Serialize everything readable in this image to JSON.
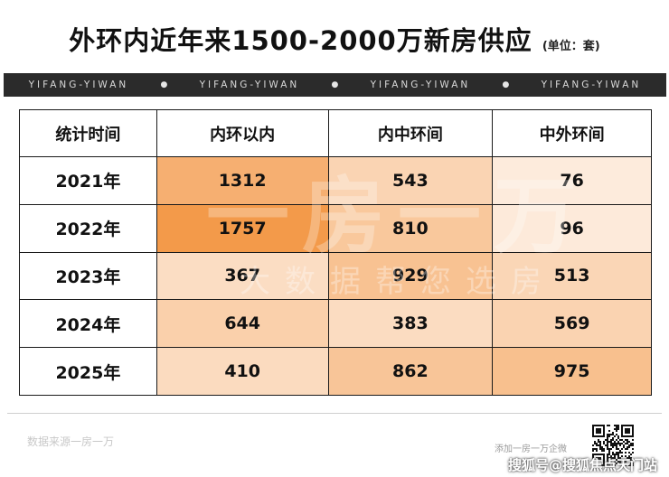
{
  "chart_data": {
    "type": "table",
    "title": "外环内近年来1500-2000万新房供应",
    "unit_note": "(单位：套)",
    "columns": [
      "统计时间",
      "内环以内",
      "内中环间",
      "中外环间"
    ],
    "rows": [
      {
        "year": "2021年",
        "values": [
          1312,
          543,
          76
        ]
      },
      {
        "year": "2022年",
        "values": [
          1757,
          810,
          96
        ]
      },
      {
        "year": "2023年",
        "values": [
          367,
          929,
          513
        ]
      },
      {
        "year": "2024年",
        "values": [
          644,
          383,
          569
        ]
      },
      {
        "year": "2025年",
        "values": [
          410,
          862,
          975
        ]
      }
    ],
    "heat_colors": {
      "low": "#fdebdc",
      "high": "#f39a4a"
    },
    "value_range": [
      76,
      1757
    ]
  },
  "banner": {
    "items": [
      "YIFANG-YIWAN",
      "YIFANG-YIWAN",
      "YIFANG-YIWAN",
      "YIFANG-YIWAN"
    ],
    "separator": "●"
  },
  "watermark": {
    "big": "一房一万",
    "small": "大数据帮您选房"
  },
  "footer": {
    "source": "数据来源一房一万",
    "qr_caption": "添加一房一万企微",
    "sohu_mark": "搜狐号@搜狐焦点天门站"
  }
}
